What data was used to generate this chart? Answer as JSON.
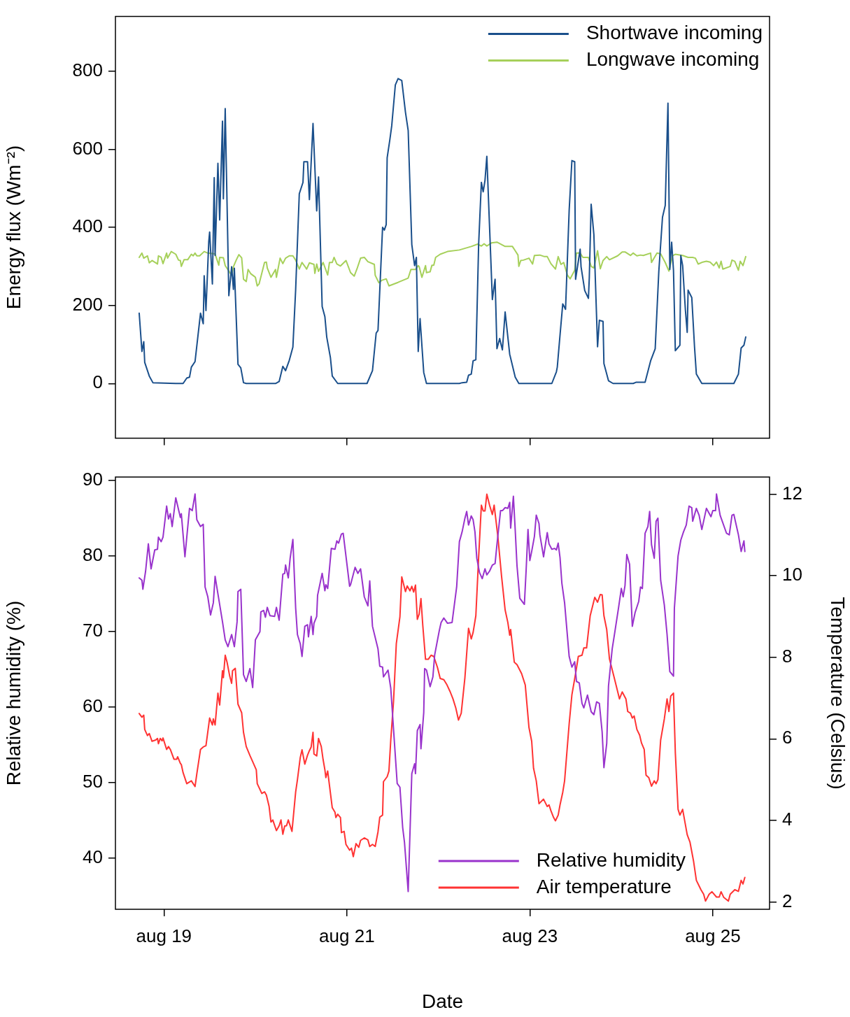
{
  "chart_data": [
    {
      "type": "line",
      "ylabel": "Energy flux (Wm⁻²)",
      "xlim": [
        "--08-18T11:17",
        "--08-25T14:53"
      ],
      "xticks": [
        {
          "value": "--08-19",
          "label": null
        },
        {
          "value": "--08-21",
          "label": null
        },
        {
          "value": "--08-23",
          "label": null
        },
        {
          "value": "--08-25",
          "label": null
        }
      ],
      "ylim": [
        -140,
        940
      ],
      "yticks": [
        0,
        200,
        400,
        600,
        800
      ],
      "tick_labels": "y",
      "legend": "top right",
      "marker": "none",
      "line_style": "solid",
      "series": [
        {
          "name": "Shortwave incoming",
          "color": "#1a4f8b",
          "x": [
            "--08-18T17:31",
            "--08-18T18:14",
            "--08-18T18:43",
            "--08-18T18:58",
            "--08-18T20:10",
            "--08-18T21:07",
            "--08-19T03:07",
            "--08-19T05:02",
            "--08-19T06:00",
            "--08-19T06:43",
            "--08-19T07:12",
            "--08-19T08:10",
            "--08-19T09:36",
            "--08-19T10:19",
            "--08-19T10:34",
            "--08-19T11:02",
            "--08-19T11:46",
            "--08-19T12:00",
            "--08-19T12:43",
            "--08-19T13:12",
            "--08-19T13:26",
            "--08-19T14:10",
            "--08-19T14:38",
            "--08-19T15:22",
            "--08-19T15:36",
            "--08-19T16:05",
            "--08-19T17:02",
            "--08-19T17:46",
            "--08-19T18:14",
            "--08-19T18:29",
            "--08-19T19:26",
            "--08-19T20:10",
            "--08-19T20:53",
            "--08-19T21:36",
            "--08-20T05:17",
            "--08-20T06:14",
            "--08-20T07:12",
            "--08-20T07:55",
            "--08-20T08:53",
            "--08-20T09:50",
            "--08-20T10:34",
            "--08-20T11:31",
            "--08-20T12:29",
            "--08-20T12:43",
            "--08-20T13:41",
            "--08-20T14:10",
            "--08-20T15:07",
            "--08-20T16:05",
            "--08-20T16:34",
            "--08-20T17:31",
            "--08-20T18:14",
            "--08-20T18:43",
            "--08-20T19:41",
            "--08-20T20:10",
            "--08-20T21:36",
            "--08-21T05:17",
            "--08-21T06:43",
            "--08-21T07:41",
            "--08-21T08:10",
            "--08-21T09:22",
            "--08-21T09:50",
            "--08-21T10:19",
            "--08-21T10:34",
            "--08-21T11:17",
            "--08-21T11:46",
            "--08-21T12:43",
            "--08-21T13:26",
            "--08-21T14:24",
            "--08-21T15:22",
            "--08-21T16:05",
            "--08-21T17:02",
            "--08-21T17:46",
            "--08-21T18:14",
            "--08-21T18:43",
            "--08-21T19:12",
            "--08-21T20:10",
            "--08-21T20:53",
            "--08-22T05:31",
            "--08-22T06:14",
            "--08-22T07:26",
            "--08-22T07:55",
            "--08-22T08:38",
            "--08-22T09:07",
            "--08-22T09:50",
            "--08-22T10:34",
            "--08-22T11:17",
            "--08-22T11:46",
            "--08-22T12:14",
            "--08-22T12:43",
            "--08-22T14:10",
            "--08-22T14:53",
            "--08-22T15:22",
            "--08-22T16:05",
            "--08-22T16:48",
            "--08-22T17:31",
            "--08-22T18:43",
            "--08-22T20:10",
            "--08-22T21:07",
            "--08-23T05:46",
            "--08-23T06:58",
            "--08-23T07:12",
            "--08-23T07:55",
            "--08-23T08:38",
            "--08-23T09:22",
            "--08-23T10:19",
            "--08-23T11:02",
            "--08-23T11:46",
            "--08-23T12:00",
            "--08-23T13:12",
            "--08-23T13:26",
            "--08-23T14:24",
            "--08-23T15:22",
            "--08-23T15:36",
            "--08-23T16:05",
            "--08-23T16:48",
            "--08-23T17:46",
            "--08-23T18:14",
            "--08-23T19:12",
            "--08-23T19:26",
            "--08-23T20:38",
            "--08-23T21:50",
            "--08-24T03:07",
            "--08-24T03:50",
            "--08-24T06:14",
            "--08-24T07:41",
            "--08-24T08:53",
            "--08-24T09:50",
            "--08-24T10:48",
            "--08-24T11:31",
            "--08-24T12:14",
            "--08-24T12:43",
            "--08-24T13:12",
            "--08-24T13:41",
            "--08-24T14:10",
            "--08-24T15:22",
            "--08-24T15:36",
            "--08-24T16:05",
            "--08-24T16:48",
            "--08-24T17:17",
            "--08-24T17:31",
            "--08-24T18:29",
            "--08-24T19:12",
            "--08-24T19:41",
            "--08-24T20:24",
            "--08-24T21:07",
            "--08-25T05:31",
            "--08-25T06:43",
            "--08-25T07:26",
            "--08-25T08:10",
            "--08-25T08:38"
          ],
          "values": [
            180,
            82,
            107,
            54,
            19,
            2,
            0,
            0,
            14,
            16,
            42,
            56,
            180,
            153,
            276,
            187,
            363,
            388,
            255,
            527,
            328,
            564,
            419,
            672,
            473,
            704,
            225,
            299,
            241,
            295,
            49,
            40,
            2,
            0,
            0,
            5,
            44,
            33,
            59,
            93,
            241,
            486,
            515,
            568,
            568,
            471,
            666,
            442,
            529,
            197,
            171,
            119,
            66,
            19,
            0,
            0,
            33,
            129,
            136,
            400,
            393,
            407,
            578,
            625,
            660,
            765,
            781,
            776,
            695,
            648,
            356,
            302,
            323,
            82,
            166,
            28,
            0,
            0,
            2,
            3,
            21,
            24,
            58,
            61,
            356,
            515,
            491,
            520,
            582,
            215,
            267,
            89,
            115,
            86,
            183,
            75,
            16,
            0,
            0,
            30,
            42,
            124,
            204,
            190,
            444,
            571,
            568,
            267,
            344,
            299,
            238,
            218,
            272,
            459,
            381,
            94,
            162,
            159,
            51,
            7,
            0,
            0,
            3,
            3,
            58,
            89,
            287,
            426,
            456,
            718,
            292,
            362,
            290,
            84,
            98,
            328,
            302,
            189,
            131,
            239,
            220,
            94,
            24,
            12,
            0,
            0,
            24,
            91,
            98,
            119
          ]
        },
        {
          "name": "Longwave incoming",
          "color": "#a6d05a",
          "x": [
            "--08-18T17:31",
            "--08-18T18:14",
            "--08-18T18:43",
            "--08-18T19:41",
            "--08-18T20:10",
            "--08-18T20:53",
            "--08-18T22:19",
            "--08-18T22:34",
            "--08-18T23:17",
            "--08-18T23:46",
            "--08-19T00:43",
            "--08-19T00:58",
            "--08-19T01:55",
            "--08-19T03:07",
            "--08-19T03:50",
            "--08-19T04:19",
            "--08-19T04:34",
            "--08-19T05:17",
            "--08-19T06:14",
            "--08-19T07:12",
            "--08-19T07:41",
            "--08-19T08:10",
            "--08-19T08:38",
            "--08-19T09:22",
            "--08-19T10:34",
            "--08-19T11:31",
            "--08-19T13:26",
            "--08-19T13:41",
            "--08-19T14:24",
            "--08-19T14:38",
            "--08-19T15:36",
            "--08-19T16:05",
            "--08-19T17:02",
            "--08-19T17:46",
            "--08-19T18:14",
            "--08-19T18:58",
            "--08-19T19:41",
            "--08-19T20:24",
            "--08-19T20:53",
            "--08-19T21:36",
            "--08-19T22:05",
            "--08-19T22:48",
            "--08-19T23:46",
            "--08-20T00:00",
            "--08-20T00:29",
            "--08-20T00:58",
            "--08-20T02:24",
            "--08-20T02:53",
            "--08-20T03:07",
            "--08-20T04:05",
            "--08-20T05:17",
            "--08-20T05:31",
            "--08-20T06:29",
            "--08-20T07:12",
            "--08-20T07:55",
            "--08-20T08:53",
            "--08-20T09:50",
            "--08-20T10:34",
            "--08-20T11:31",
            "--08-20T12:14",
            "--08-20T12:58",
            "--08-20T13:26",
            "--08-20T14:10",
            "--08-20T15:22",
            "--08-20T15:36",
            "--08-20T16:05",
            "--08-20T16:34",
            "--08-20T17:46",
            "--08-20T18:58",
            "--08-20T19:26",
            "--08-20T20:10",
            "--08-20T20:38",
            "--08-20T21:22",
            "--08-20T22:19",
            "--08-20T23:46",
            "--08-21T00:58",
            "--08-21T01:55",
            "--08-21T02:38",
            "--08-21T03:36",
            "--08-21T04:34",
            "--08-21T05:31",
            "--08-21T07:12",
            "--08-21T07:26",
            "--08-21T08:24",
            "--08-21T09:07",
            "--08-21T10:19",
            "--08-21T11:02",
            "--08-21T13:26",
            "--08-21T16:05",
            "--08-21T16:48",
            "--08-21T18:00",
            "--08-21T18:43",
            "--08-21T18:58",
            "--08-21T19:41",
            "--08-21T20:38",
            "--08-21T20:53",
            "--08-21T21:50",
            "--08-21T22:19",
            "--08-21T22:48",
            "--08-21T23:17",
            "--08-22T00:29",
            "--08-22T02:24",
            "--08-22T05:31",
            "--08-22T08:38",
            "--08-22T10:19",
            "--08-22T11:17",
            "--08-22T12:00",
            "--08-22T12:43",
            "--08-22T13:55",
            "--08-22T15:22",
            "--08-22T17:31",
            "--08-22T19:26",
            "--08-22T20:10",
            "--08-22T20:53",
            "--08-22T21:07",
            "--08-22T21:36",
            "--08-22T22:19",
            "--08-22T23:46",
            "--08-23T00:43",
            "--08-23T01:12",
            "--08-23T02:38",
            "--08-23T03:50",
            "--08-23T04:34",
            "--08-23T05:31",
            "--08-23T06:43",
            "--08-23T07:26",
            "--08-23T08:10",
            "--08-23T08:53",
            "--08-23T09:50",
            "--08-23T10:34",
            "--08-23T11:46",
            "--08-23T12:14",
            "--08-23T13:12",
            "--08-23T13:55",
            "--08-23T15:22",
            "--08-23T16:05",
            "--08-23T16:48",
            "--08-23T17:46",
            "--08-23T18:29",
            "--08-23T19:12",
            "--08-23T20:10",
            "--08-23T20:53",
            "--08-23T23:02",
            "--08-24T00:14",
            "--08-24T00:58",
            "--08-24T02:24",
            "--08-24T03:07",
            "--08-24T04:05",
            "--08-24T05:02",
            "--08-24T05:46",
            "--08-24T07:41",
            "--08-24T07:55",
            "--08-24T09:22",
            "--08-24T10:19",
            "--08-24T11:31",
            "--08-24T12:29",
            "--08-24T13:26",
            "--08-24T14:10",
            "--08-24T16:05",
            "--08-24T17:31",
            "--08-24T18:43",
            "--08-24T19:26",
            "--08-24T20:10",
            "--08-24T21:22",
            "--08-24T22:19",
            "--08-24T23:17",
            "--08-25T00:14",
            "--08-25T00:58",
            "--08-25T01:41",
            "--08-25T02:10",
            "--08-25T02:38",
            "--08-25T04:34",
            "--08-25T05:02",
            "--08-25T05:46",
            "--08-25T06:43",
            "--08-25T07:12",
            "--08-25T07:55",
            "--08-25T08:38"
          ],
          "values": [
            323,
            334,
            321,
            327,
            309,
            315,
            306,
            327,
            323,
            307,
            334,
            321,
            338,
            331,
            316,
            315,
            300,
            317,
            317,
            331,
            327,
            334,
            327,
            327,
            338,
            334,
            332,
            324,
            303,
            323,
            322,
            302,
            288,
            277,
            299,
            316,
            330,
            322,
            267,
            261,
            292,
            281,
            274,
            272,
            250,
            255,
            310,
            311,
            296,
            272,
            292,
            272,
            321,
            307,
            321,
            327,
            327,
            316,
            293,
            310,
            300,
            293,
            309,
            305,
            282,
            306,
            287,
            310,
            278,
            310,
            310,
            323,
            306,
            301,
            315,
            284,
            275,
            293,
            321,
            323,
            312,
            305,
            277,
            258,
            264,
            268,
            250,
            259,
            270,
            292,
            292,
            302,
            299,
            272,
            302,
            284,
            286,
            303,
            303,
            323,
            331,
            338,
            342,
            351,
            357,
            352,
            358,
            352,
            360,
            362,
            351,
            351,
            340,
            329,
            300,
            315,
            316,
            321,
            306,
            328,
            329,
            325,
            325,
            307,
            293,
            325,
            305,
            310,
            278,
            268,
            290,
            334,
            334,
            323,
            323,
            300,
            296,
            340,
            294,
            315,
            325,
            317,
            327,
            337,
            337,
            328,
            334,
            327,
            329,
            328,
            334,
            310,
            334,
            332,
            310,
            288,
            327,
            331,
            328,
            323,
            323,
            321,
            306,
            311,
            313,
            311,
            302,
            311,
            296,
            313,
            293,
            300,
            316,
            313,
            290,
            313,
            302,
            325
          ]
        }
      ]
    },
    {
      "type": "line",
      "xlabel": "Date",
      "ylabel": "Relative humidity (%)",
      "y2label": "Temperature (Celsius)",
      "xlim": [
        "--08-18T11:17",
        "--08-25T14:53"
      ],
      "xticks": [
        {
          "value": "--08-19",
          "label": "aug 19"
        },
        {
          "value": "--08-21",
          "label": "aug 21"
        },
        {
          "value": "--08-23",
          "label": "aug 23"
        },
        {
          "value": "--08-25",
          "label": "aug 25"
        }
      ],
      "ylim": [
        33.25,
        90.45
      ],
      "yticks": [
        40,
        50,
        60,
        70,
        80,
        90
      ],
      "y2lim": [
        1.82,
        12.42
      ],
      "y2ticks": [
        2,
        4,
        6,
        8,
        10,
        12
      ],
      "legend": "bottom right",
      "marker": "none",
      "line_style": "solid",
      "series": [
        {
          "name": "Relative humidity",
          "color": "#9933cc",
          "x": [
            "--08-18T17:31",
            "--08-18T18:14",
            "--08-18T18:29",
            "--08-18T19:12",
            "--08-18T19:55",
            "--08-18T20:38",
            "--08-18T21:36",
            "--08-18T22:19",
            "--08-18T22:34",
            "--08-18T23:17",
            "--08-18T23:46",
            "--08-19T00:43",
            "--08-19T01:12",
            "--08-19T01:41",
            "--08-19T02:10",
            "--08-19T03:07",
            "--08-19T04:19",
            "--08-19T04:34",
            "--08-19T05:31",
            "--08-19T06:43",
            "--08-19T07:26",
            "--08-19T08:10",
            "--08-19T08:38",
            "--08-19T09:36",
            "--08-19T10:19",
            "--08-19T10:48",
            "--08-19T11:31",
            "--08-19T12:14",
            "--08-19T12:58",
            "--08-19T13:26",
            "--08-19T14:10",
            "--08-19T15:22",
            "--08-19T16:05",
            "--08-19T16:48",
            "--08-19T17:46",
            "--08-19T18:29",
            "--08-19T19:12",
            "--08-19T19:26",
            "--08-19T20:10",
            "--08-19T20:53",
            "--08-19T21:36",
            "--08-19T22:34",
            "--08-19T23:17",
            "--08-20T00:00",
            "--08-20T01:12",
            "--08-20T01:26",
            "--08-20T02:10",
            "--08-20T02:38",
            "--08-20T03:07",
            "--08-20T03:50",
            "--08-20T05:02",
            "--08-20T05:31",
            "--08-20T06:14",
            "--08-20T07:12",
            "--08-20T07:41",
            "--08-20T07:55",
            "--08-20T08:38",
            "--08-20T09:07",
            "--08-20T09:50",
            "--08-20T10:34",
            "--08-20T11:02",
            "--08-20T11:46",
            "--08-20T12:14",
            "--08-20T12:58",
            "--08-20T13:41",
            "--08-20T13:55",
            "--08-20T14:38",
            "--08-20T15:07",
            "--08-20T15:22",
            "--08-20T16:05",
            "--08-20T16:19",
            "--08-20T17:31",
            "--08-20T18:14",
            "--08-20T18:29",
            "--08-20T18:58",
            "--08-20T19:55",
            "--08-20T20:53",
            "--08-20T21:22",
            "--08-20T21:50",
            "--08-20T22:34",
            "--08-20T23:02",
            "--08-21T00:43",
            "--08-21T00:58",
            "--08-21T02:10",
            "--08-21T02:53",
            "--08-21T03:36",
            "--08-21T04:34",
            "--08-21T05:31",
            "--08-21T06:00",
            "--08-21T06:43",
            "--08-21T08:10",
            "--08-21T08:38",
            "--08-21T09:22",
            "--08-21T09:36",
            "--08-21T10:48",
            "--08-21T11:31",
            "--08-21T13:12",
            "--08-21T13:55",
            "--08-21T14:38",
            "--08-21T15:07",
            "--08-21T16:05",
            "--08-21T17:02",
            "--08-21T17:46",
            "--08-21T18:00",
            "--08-21T18:29",
            "--08-21T19:12",
            "--08-21T19:26",
            "--08-21T20:10",
            "--08-21T20:24",
            "--08-21T20:53",
            "--08-21T21:50",
            "--08-21T22:34",
            "--08-21T23:02",
            "--08-22T00:14",
            "--08-22T00:43",
            "--08-22T01:26",
            "--08-22T02:24",
            "--08-22T03:36",
            "--08-22T04:48",
            "--08-22T05:31",
            "--08-22T06:14",
            "--08-22T06:58",
            "--08-22T07:26",
            "--08-22T07:55",
            "--08-22T08:38",
            "--08-22T09:07",
            "--08-22T09:36",
            "--08-22T10:05",
            "--08-22T10:48",
            "--08-22T11:31",
            "--08-22T12:14",
            "--08-22T12:43",
            "--08-22T13:26",
            "--08-22T14:10",
            "--08-22T14:53",
            "--08-22T15:22",
            "--08-22T16:19",
            "--08-22T16:48",
            "--08-22T17:31",
            "--08-22T18:14",
            "--08-22T18:43",
            "--08-22T18:58",
            "--08-22T19:41",
            "--08-22T20:10",
            "--08-22T20:38",
            "--08-22T21:22",
            "--08-22T22:34",
            "--08-22T23:02",
            "--08-22T23:31",
            "--08-23T00:00",
            "--08-23T00:29",
            "--08-23T01:12",
            "--08-23T01:41",
            "--08-23T02:24",
            "--08-23T02:38",
            "--08-23T03:36",
            "--08-23T04:34",
            "--08-23T05:02",
            "--08-23T05:46",
            "--08-23T06:29",
            "--08-23T06:58",
            "--08-23T07:26",
            "--08-23T07:55",
            "--08-23T08:24",
            "--08-23T09:07",
            "--08-23T10:19",
            "--08-23T11:02",
            "--08-23T11:46",
            "--08-23T12:14",
            "--08-23T12:58",
            "--08-23T13:41",
            "--08-23T14:10",
            "--08-23T15:07",
            "--08-23T16:05",
            "--08-23T16:48",
            "--08-23T17:31",
            "--08-23T18:14",
            "--08-23T18:58",
            "--08-23T19:26",
            "--08-23T20:10",
            "--08-23T20:38",
            "--08-23T21:36",
            "--08-23T22:19",
            "--08-23T23:17",
            "--08-24T00:00",
            "--08-24T00:29",
            "--08-24T00:58",
            "--08-24T01:26",
            "--08-24T02:10",
            "--08-24T02:53",
            "--08-24T03:36",
            "--08-24T04:34",
            "--08-24T05:02",
            "--08-24T05:31",
            "--08-24T06:14",
            "--08-24T06:58",
            "--08-24T07:26",
            "--08-24T07:55",
            "--08-24T08:38",
            "--08-24T09:07",
            "--08-24T09:36",
            "--08-24T10:19",
            "--08-24T11:17",
            "--08-24T12:00",
            "--08-24T12:43",
            "--08-24T13:41",
            "--08-24T13:55",
            "--08-24T14:53",
            "--08-24T15:36",
            "--08-24T16:19",
            "--08-24T17:02",
            "--08-24T17:46",
            "--08-24T18:29",
            "--08-24T18:43",
            "--08-24T19:41",
            "--08-24T20:24",
            "--08-24T21:07",
            "--08-24T22:19",
            "--08-24T23:31",
            "--08-25T00:00",
            "--08-25T00:43",
            "--08-25T00:58",
            "--08-25T01:55",
            "--08-25T03:36",
            "--08-25T04:19",
            "--08-25T05:02",
            "--08-25T05:31",
            "--08-25T06:43",
            "--08-25T07:26",
            "--08-25T08:10",
            "--08-25T08:24"
          ],
          "values": [
            77.1,
            76.8,
            75.6,
            78.0,
            81.6,
            78.3,
            80.8,
            80.9,
            82.5,
            81.9,
            82.5,
            86.6,
            84.9,
            85.6,
            83.9,
            87.7,
            85.1,
            85.6,
            79.9,
            86.3,
            86.0,
            88.2,
            84.8,
            83.9,
            84.2,
            75.9,
            74.6,
            72.2,
            73.8,
            77.3,
            75.0,
            71.3,
            68.9,
            68.0,
            69.6,
            68.0,
            71.3,
            75.3,
            75.6,
            64.3,
            63.4,
            65.1,
            62.6,
            68.9,
            70.0,
            72.6,
            72.8,
            71.9,
            73.2,
            72.1,
            72.0,
            73.2,
            71.5,
            77.6,
            77.7,
            78.8,
            77.1,
            79.7,
            82.2,
            73.1,
            69.6,
            68.4,
            66.7,
            70.7,
            70.9,
            69.3,
            72.0,
            69.6,
            71.1,
            72.0,
            74.8,
            77.7,
            75.4,
            76.2,
            75.7,
            81.0,
            80.9,
            82.0,
            81.7,
            82.9,
            83.0,
            76.0,
            76.2,
            78.5,
            77.7,
            78.3,
            74.6,
            73.4,
            76.7,
            70.7,
            67.7,
            65.4,
            65.3,
            64.0,
            64.9,
            62.5,
            49.9,
            49.4,
            44.1,
            42.1,
            35.6,
            51.2,
            52.5,
            51.2,
            56.9,
            57.7,
            54.5,
            59.3,
            65.1,
            64.9,
            62.7,
            64.0,
            66.9,
            70.1,
            71.2,
            71.8,
            71.1,
            71.2,
            75.9,
            81.9,
            83.2,
            85.0,
            85.9,
            84.1,
            85.3,
            84.8,
            83.2,
            79.7,
            77.8,
            77.0,
            78.3,
            77.5,
            78.0,
            78.8,
            79.0,
            81.5,
            86.0,
            86.0,
            86.4,
            86.3,
            87.1,
            83.7,
            87.9,
            83.4,
            78.7,
            74.4,
            73.6,
            78.2,
            83.5,
            79.4,
            80.6,
            82.6,
            85.4,
            84.3,
            82.8,
            79.9,
            83.1,
            81.6,
            80.9,
            81.0,
            80.8,
            81.7,
            79.8,
            76.4,
            73.8,
            66.7,
            65.3,
            66.0,
            63.4,
            63.2,
            60.5,
            59.9,
            61.6,
            59.4,
            59.0,
            60.7,
            60.5,
            56.7,
            52.0,
            55.2,
            62.8,
            67.7,
            70.0,
            73.2,
            75.7,
            74.6,
            76.1,
            80.2,
            78.9,
            70.7,
            72.5,
            74.0,
            75.9,
            75.7,
            83.0,
            83.9,
            85.9,
            81.5,
            79.7,
            84.6,
            85.0,
            76.8,
            73.5,
            69.6,
            64.7,
            64.1,
            73.1,
            80.0,
            82.1,
            83.2,
            84.1,
            86.6,
            86.4,
            84.6,
            86.3,
            85.4,
            83.5,
            86.3,
            85.2,
            86.0,
            86.0,
            88.2,
            85.4,
            83.0,
            82.8,
            85.4,
            85.5,
            82.8,
            80.6,
            82.0,
            80.6
          ]
        },
        {
          "name": "Air temperature",
          "color": "#ff3333",
          "axis": "y2",
          "x": [
            "--08-18T17:31",
            "--08-18T18:14",
            "--08-18T18:43",
            "--08-18T18:58",
            "--08-18T19:41",
            "--08-18T20:10",
            "--08-18T20:53",
            "--08-18T21:50",
            "--08-18T22:19",
            "--08-18T22:34",
            "--08-18T23:02",
            "--08-18T23:31",
            "--08-18T23:46",
            "--08-19T00:43",
            "--08-19T01:12",
            "--08-19T01:41",
            "--08-19T02:38",
            "--08-19T03:22",
            "--08-19T03:36",
            "--08-19T04:19",
            "--08-19T04:34",
            "--08-19T05:02",
            "--08-19T06:00",
            "--08-19T07:12",
            "--08-19T08:10",
            "--08-19T08:38",
            "--08-19T09:36",
            "--08-19T10:19",
            "--08-19T11:02",
            "--08-19T12:00",
            "--08-19T12:43",
            "--08-19T12:58",
            "--08-19T13:26",
            "--08-19T14:10",
            "--08-19T14:38",
            "--08-19T15:22",
            "--08-19T15:36",
            "--08-19T16:05",
            "--08-19T16:34",
            "--08-19T17:17",
            "--08-19T17:46",
            "--08-19T18:00",
            "--08-19T18:43",
            "--08-19T19:26",
            "--08-19T20:24",
            "--08-19T20:53",
            "--08-19T21:36",
            "--08-19T22:34",
            "--08-19T23:17",
            "--08-20T00:14",
            "--08-20T00:29",
            "--08-20T01:41",
            "--08-20T02:24",
            "--08-20T02:53",
            "--08-20T03:36",
            "--08-20T04:05",
            "--08-20T04:34",
            "--08-20T05:31",
            "--08-20T06:14",
            "--08-20T06:43",
            "--08-20T07:12",
            "--08-20T07:41",
            "--08-20T08:10",
            "--08-20T08:38",
            "--08-20T09:36",
            "--08-20T10:34",
            "--08-20T11:02",
            "--08-20T11:46",
            "--08-20T12:14",
            "--08-20T12:58",
            "--08-20T13:41",
            "--08-20T14:10",
            "--08-20T14:38",
            "--08-20T15:07",
            "--08-20T15:22",
            "--08-20T16:05",
            "--08-20T16:34",
            "--08-20T17:17",
            "--08-20T17:46",
            "--08-20T18:14",
            "--08-20T18:29",
            "--08-20T18:58",
            "--08-20T19:26",
            "--08-20T20:10",
            "--08-20T20:53",
            "--08-20T21:07",
            "--08-20T21:36",
            "--08-20T22:19",
            "--08-20T22:34",
            "--08-20T23:17",
            "--08-20T23:46",
            "--08-21T00:43",
            "--08-21T01:12",
            "--08-21T01:41",
            "--08-21T02:24",
            "--08-21T03:07",
            "--08-21T03:36",
            "--08-21T04:34",
            "--08-21T05:31",
            "--08-21T06:00",
            "--08-21T06:43",
            "--08-21T07:26",
            "--08-21T08:10",
            "--08-21T08:38",
            "--08-21T09:22",
            "--08-21T09:36",
            "--08-21T10:34",
            "--08-21T11:02",
            "--08-21T11:31",
            "--08-21T12:14",
            "--08-21T12:58",
            "--08-21T13:55",
            "--08-21T14:24",
            "--08-21T15:22",
            "--08-21T15:50",
            "--08-21T16:34",
            "--08-21T17:02",
            "--08-21T17:31",
            "--08-21T18:00",
            "--08-21T18:29",
            "--08-21T18:58",
            "--08-21T19:26",
            "--08-21T19:55",
            "--08-21T20:38",
            "--08-21T21:22",
            "--08-21T22:05",
            "--08-21T22:48",
            "--08-21T23:46",
            "--08-22T00:29",
            "--08-22T01:26",
            "--08-22T02:10",
            "--08-22T03:07",
            "--08-22T03:50",
            "--08-22T04:34",
            "--08-22T05:17",
            "--08-22T06:00",
            "--08-22T06:58",
            "--08-22T07:55",
            "--08-22T08:38",
            "--08-22T09:07",
            "--08-22T09:50",
            "--08-22T10:34",
            "--08-22T11:17",
            "--08-22T11:46",
            "--08-22T12:14",
            "--08-22T12:43",
            "--08-22T13:26",
            "--08-22T14:10",
            "--08-22T14:38",
            "--08-22T15:36",
            "--08-22T16:34",
            "--08-22T17:31",
            "--08-22T18:14",
            "--08-22T18:43",
            "--08-22T18:58",
            "--08-22T19:55",
            "--08-22T20:38",
            "--08-22T21:50",
            "--08-22T22:48",
            "--08-22T23:46",
            "--08-23T00:29",
            "--08-23T00:58",
            "--08-23T01:41",
            "--08-23T02:24",
            "--08-23T03:36",
            "--08-23T04:34",
            "--08-23T05:02",
            "--08-23T05:31",
            "--08-23T06:14",
            "--08-23T06:43",
            "--08-23T07:26",
            "--08-23T07:55",
            "--08-23T08:38",
            "--08-23T09:07",
            "--08-23T10:19",
            "--08-23T11:02",
            "--08-23T12:00",
            "--08-23T12:43",
            "--08-23T13:41",
            "--08-23T14:10",
            "--08-23T14:53",
            "--08-23T15:50",
            "--08-23T17:02",
            "--08-23T17:46",
            "--08-23T18:29",
            "--08-23T18:58",
            "--08-23T19:26",
            "--08-23T20:10",
            "--08-23T20:53",
            "--08-23T22:05",
            "--08-23T23:31",
            "--08-24T00:14",
            "--08-24T01:12",
            "--08-24T01:41",
            "--08-24T02:24",
            "--08-24T02:53",
            "--08-24T03:22",
            "--08-24T04:05",
            "--08-24T04:48",
            "--08-24T05:17",
            "--08-24T06:00",
            "--08-24T06:29",
            "--08-24T07:12",
            "--08-24T07:55",
            "--08-24T08:38",
            "--08-24T09:07",
            "--08-24T09:36",
            "--08-24T10:19",
            "--08-24T11:17",
            "--08-24T12:00",
            "--08-24T12:29",
            "--08-24T12:58",
            "--08-24T13:41",
            "--08-24T14:10",
            "--08-24T14:53",
            "--08-24T15:22",
            "--08-24T16:05",
            "--08-24T17:17",
            "--08-24T18:00",
            "--08-24T18:58",
            "--08-24T19:41",
            "--08-24T20:53",
            "--08-24T21:36",
            "--08-24T22:05",
            "--08-24T23:02",
            "--08-24T23:46",
            "--08-25T00:58",
            "--08-25T01:41",
            "--08-25T02:10",
            "--08-25T02:53",
            "--08-25T04:05",
            "--08-25T04:34",
            "--08-25T05:46",
            "--08-25T06:43",
            "--08-25T07:26",
            "--08-25T07:55",
            "--08-25T08:24"
          ],
          "values": [
            6.62,
            6.53,
            6.58,
            6.23,
            6.08,
            6.13,
            5.94,
            5.97,
            6.01,
            5.88,
            6.01,
            5.95,
            6.02,
            5.74,
            5.81,
            5.74,
            5.5,
            5.5,
            5.56,
            5.4,
            5.37,
            5.17,
            4.9,
            4.97,
            4.83,
            5.14,
            5.74,
            5.8,
            5.83,
            6.51,
            6.34,
            6.49,
            6.34,
            7.12,
            6.83,
            7.67,
            7.5,
            8.05,
            7.88,
            7.53,
            7.36,
            7.67,
            7.73,
            6.85,
            6.64,
            6.16,
            5.81,
            5.59,
            5.44,
            5.24,
            4.9,
            4.66,
            4.7,
            4.62,
            4.34,
            3.96,
            4.01,
            3.75,
            3.87,
            4.01,
            3.66,
            3.86,
            3.87,
            4.01,
            3.73,
            4.7,
            5.0,
            5.54,
            5.73,
            5.38,
            5.6,
            5.71,
            5.8,
            6.16,
            5.63,
            5.58,
            6.01,
            5.81,
            5.49,
            5.24,
            5.05,
            5.21,
            4.86,
            4.31,
            4.2,
            4.07,
            4.15,
            4.07,
            3.7,
            3.73,
            3.41,
            3.27,
            3.32,
            3.11,
            3.43,
            3.34,
            3.51,
            3.57,
            3.52,
            3.36,
            3.41,
            3.36,
            3.72,
            4.08,
            4.13,
            4.95,
            5.07,
            5.21,
            5.97,
            6.91,
            8.33,
            8.99,
            9.97,
            9.61,
            9.75,
            9.63,
            9.74,
            9.6,
            9.77,
            8.93,
            9.06,
            9.44,
            8.78,
            7.95,
            7.95,
            8.05,
            8.02,
            7.75,
            7.48,
            7.45,
            7.34,
            7.15,
            6.98,
            6.76,
            6.46,
            6.63,
            7.5,
            8.71,
            8.45,
            8.61,
            9.02,
            10.45,
            11.73,
            11.59,
            11.59,
            12.0,
            11.73,
            11.5,
            11.73,
            10.97,
            10.0,
            9.16,
            8.85,
            8.54,
            8.68,
            7.88,
            7.82,
            7.6,
            7.32,
            6.28,
            5.94,
            5.28,
            4.97,
            4.41,
            4.52,
            4.34,
            4.38,
            4.24,
            4.07,
            3.99,
            4.13,
            4.38,
            4.69,
            4.97,
            6.37,
            7.08,
            7.6,
            8.02,
            8.05,
            8.23,
            8.23,
            9.02,
            9.47,
            9.35,
            9.54,
            9.53,
            9.02,
            8.68,
            7.96,
            7.52,
            6.98,
            7.15,
            6.98,
            6.67,
            6.63,
            6.51,
            6.56,
            6.23,
            6.09,
            5.9,
            5.74,
            5.11,
            5.05,
            4.84,
            4.97,
            4.9,
            5.0,
            5.97,
            6.49,
            6.98,
            6.67,
            7.05,
            7.12,
            5.66,
            4.27,
            4.13,
            4.27,
            3.65,
            3.47,
            2.99,
            2.53,
            2.3,
            2.19,
            2.02,
            2.19,
            2.25,
            2.12,
            2.12,
            2.25,
            2.11,
            2.02,
            2.19,
            2.3,
            2.26,
            2.53,
            2.44,
            2.6
          ]
        }
      ]
    }
  ]
}
